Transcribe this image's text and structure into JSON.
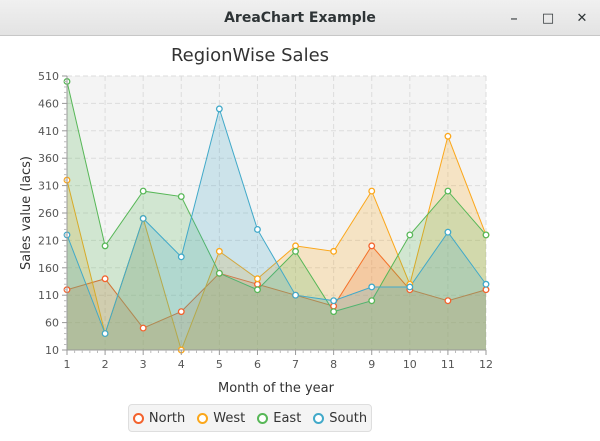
{
  "window": {
    "title": "AreaChart Example",
    "minimize_label": "–",
    "maximize_label": "□",
    "close_label": "✕"
  },
  "chart_data": {
    "type": "area",
    "title": "RegionWise Sales",
    "xlabel": "Month of the year",
    "ylabel": "Sales value (lacs)",
    "x": [
      1,
      2,
      3,
      4,
      5,
      6,
      7,
      8,
      9,
      10,
      11,
      12
    ],
    "xlim": [
      1,
      12
    ],
    "ylim": [
      10,
      510
    ],
    "yticks": [
      10,
      60,
      110,
      160,
      210,
      260,
      310,
      360,
      410,
      460,
      510
    ],
    "grid": true,
    "legend_position": "bottom",
    "series": [
      {
        "name": "North",
        "color": "#f3622d",
        "values": [
          120,
          140,
          50,
          80,
          150,
          130,
          110,
          90,
          200,
          120,
          100,
          120
        ]
      },
      {
        "name": "West",
        "color": "#fba71b",
        "values": [
          320,
          40,
          250,
          10,
          190,
          140,
          200,
          190,
          300,
          130,
          400,
          220
        ]
      },
      {
        "name": "East",
        "color": "#57b757",
        "values": [
          500,
          200,
          300,
          290,
          150,
          120,
          190,
          80,
          100,
          220,
          300,
          220
        ]
      },
      {
        "name": "South",
        "color": "#41a9c9",
        "values": [
          220,
          40,
          250,
          180,
          450,
          230,
          110,
          100,
          125,
          125,
          225,
          130
        ]
      }
    ]
  }
}
